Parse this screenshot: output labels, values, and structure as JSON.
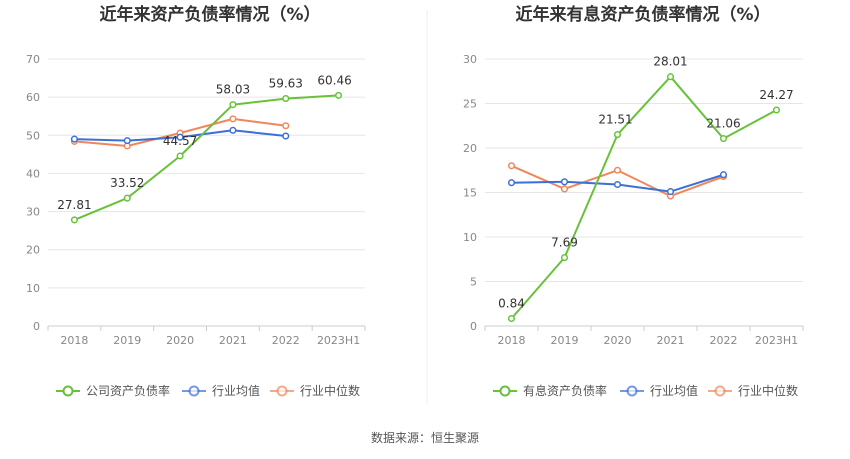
{
  "source": "数据来源：恒生聚源",
  "colors": {
    "primary": "#67c23a",
    "avg": "#3b6fd8",
    "median": "#f0875a",
    "grid": "#e6e6e6",
    "axis": "#cccccc"
  },
  "chart_data": [
    {
      "type": "line",
      "title": "近年来资产负债率情况（%）",
      "categories": [
        "2018",
        "2019",
        "2020",
        "2021",
        "2022",
        "2023H1"
      ],
      "yticks": [
        "0",
        "10",
        "20",
        "30",
        "40",
        "50",
        "60",
        "70"
      ],
      "ylim": [
        0,
        70
      ],
      "series": [
        {
          "name": "公司资产负债率",
          "values": [
            27.81,
            33.52,
            44.57,
            58.03,
            59.63,
            60.46
          ],
          "labels": [
            "27.81",
            "33.52",
            "44.57",
            "58.03",
            "59.63",
            "60.46"
          ]
        },
        {
          "name": "行业均值",
          "values": [
            49.0,
            48.6,
            49.5,
            51.3,
            49.8,
            null
          ]
        },
        {
          "name": "行业中位数",
          "values": [
            48.4,
            47.2,
            50.6,
            54.3,
            52.5,
            null
          ]
        }
      ],
      "legend": [
        "公司资产负债率",
        "行业均值",
        "行业中位数"
      ]
    },
    {
      "type": "line",
      "title": "近年来有息资产负债率情况（%）",
      "categories": [
        "2018",
        "2019",
        "2020",
        "2021",
        "2022",
        "2023H1"
      ],
      "yticks": [
        "0",
        "5",
        "10",
        "15",
        "20",
        "25",
        "30"
      ],
      "ylim": [
        0,
        30
      ],
      "series": [
        {
          "name": "有息资产负债率",
          "values": [
            0.84,
            7.69,
            21.51,
            28.01,
            21.06,
            24.27
          ],
          "labels": [
            "0.84",
            "7.69",
            "21.51",
            "28.01",
            "21.06",
            "24.27"
          ]
        },
        {
          "name": "行业均值",
          "values": [
            16.1,
            16.2,
            15.9,
            15.1,
            17.0,
            null
          ]
        },
        {
          "name": "行业中位数",
          "values": [
            18.0,
            15.4,
            17.5,
            14.6,
            16.8,
            null
          ]
        }
      ],
      "legend": [
        "有息资产负债率",
        "行业均值",
        "行业中位数"
      ]
    }
  ]
}
